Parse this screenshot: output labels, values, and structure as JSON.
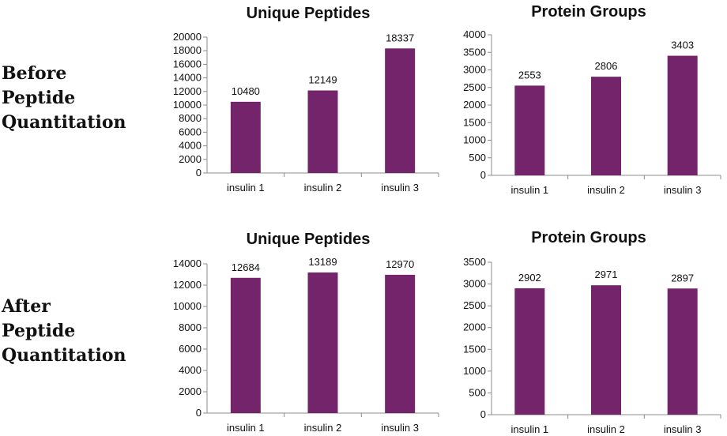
{
  "row_labels": [
    [
      "Before",
      "Peptide",
      "Quantitation"
    ],
    [
      "After",
      "Peptide",
      "Quantitation"
    ]
  ],
  "colors": {
    "bar": "#74246b",
    "axis": "#8c8c8c"
  },
  "chart_data": [
    {
      "type": "bar",
      "title": "Unique Peptides",
      "categories": [
        "insulin 1",
        "insulin 2",
        "insulin 3"
      ],
      "values": [
        10480,
        12149,
        18337
      ],
      "ylim": [
        0,
        20000
      ],
      "yticks": [
        0,
        2000,
        4000,
        6000,
        8000,
        10000,
        12000,
        14000,
        16000,
        18000,
        20000
      ],
      "data_labels": true,
      "grid": false,
      "xlabel": "",
      "ylabel": ""
    },
    {
      "type": "bar",
      "title": "Protein Groups",
      "categories": [
        "insulin 1",
        "insulin 2",
        "insulin 3"
      ],
      "values": [
        2553,
        2806,
        3403
      ],
      "ylim": [
        0,
        4000
      ],
      "yticks": [
        0,
        500,
        1000,
        1500,
        2000,
        2500,
        3000,
        3500,
        4000
      ],
      "data_labels": true,
      "grid": false,
      "xlabel": "",
      "ylabel": ""
    },
    {
      "type": "bar",
      "title": "Unique Peptides",
      "categories": [
        "insulin 1",
        "insulin 2",
        "insulin 3"
      ],
      "values": [
        12684,
        13189,
        12970
      ],
      "ylim": [
        0,
        14000
      ],
      "yticks": [
        0,
        2000,
        4000,
        6000,
        8000,
        10000,
        12000,
        14000
      ],
      "data_labels": true,
      "grid": false,
      "xlabel": "",
      "ylabel": ""
    },
    {
      "type": "bar",
      "title": "Protein Groups",
      "categories": [
        "insulin 1",
        "insulin 2",
        "insulin 3"
      ],
      "values": [
        2902,
        2971,
        2897
      ],
      "ylim": [
        0,
        3500
      ],
      "yticks": [
        0,
        500,
        1000,
        1500,
        2000,
        2500,
        3000,
        3500
      ],
      "data_labels": true,
      "grid": false,
      "xlabel": "",
      "ylabel": ""
    }
  ]
}
